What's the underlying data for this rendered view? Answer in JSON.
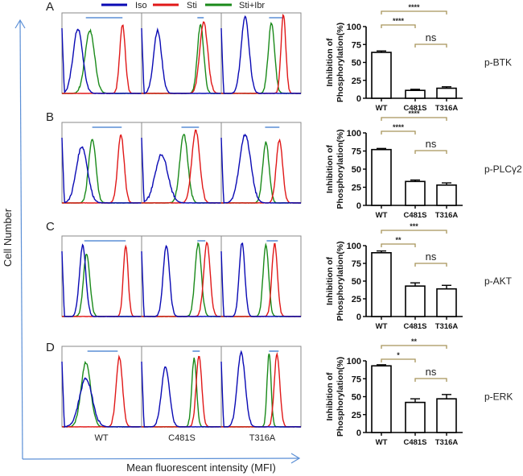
{
  "figure": {
    "y_axis_title": "Cell Number",
    "x_axis_title": "Mean fluorescent intensity (MFI)",
    "legend": [
      {
        "label": "Iso",
        "color": "#0a0ab4"
      },
      {
        "label": "Sti",
        "color": "#e01818"
      },
      {
        "label": "Sti+Ibr",
        "color": "#1a8a1a"
      }
    ],
    "samples": [
      "WT",
      "C481S",
      "T316A"
    ],
    "axis_arrow_color": "#5b8fd6",
    "gate_color": "#5b8fd6",
    "bracket_color": "#a8955a"
  },
  "chart_data": [
    {
      "type": "bar",
      "panel": "A",
      "protein": "p-BTK",
      "title": "",
      "xlabel": "",
      "ylabel": "Inhibition of Phosphorylation(%)",
      "ylim": [
        0,
        100
      ],
      "yticks": [
        0,
        25,
        50,
        75,
        100
      ],
      "categories": [
        "WT",
        "C481S",
        "T316A"
      ],
      "values": [
        64,
        11,
        14
      ],
      "errors": [
        2,
        1.5,
        2
      ],
      "significance": [
        {
          "from": "WT",
          "to": "C481S",
          "label": "****"
        },
        {
          "from": "WT",
          "to": "T316A",
          "label": "****"
        },
        {
          "from": "C481S",
          "to": "T316A",
          "label": "ns"
        }
      ]
    },
    {
      "type": "bar",
      "panel": "B",
      "protein": "p-PLCγ2",
      "title": "",
      "xlabel": "",
      "ylabel": "Inhibition of Phosphorylation(%)",
      "ylim": [
        0,
        100
      ],
      "yticks": [
        0,
        25,
        50,
        75,
        100
      ],
      "categories": [
        "WT",
        "C481S",
        "T316A"
      ],
      "values": [
        77,
        33,
        28
      ],
      "errors": [
        1.5,
        2,
        3
      ],
      "significance": [
        {
          "from": "WT",
          "to": "C481S",
          "label": "****"
        },
        {
          "from": "WT",
          "to": "T316A",
          "label": "****"
        },
        {
          "from": "C481S",
          "to": "T316A",
          "label": "ns"
        }
      ]
    },
    {
      "type": "bar",
      "panel": "C",
      "protein": "p-AKT",
      "title": "",
      "xlabel": "",
      "ylabel": "Inhibition of Phosphorylation(%)",
      "ylim": [
        0,
        100
      ],
      "yticks": [
        0,
        25,
        50,
        75,
        100
      ],
      "categories": [
        "WT",
        "C481S",
        "T316A"
      ],
      "values": [
        90,
        43,
        39
      ],
      "errors": [
        2.5,
        4.5,
        5
      ],
      "significance": [
        {
          "from": "WT",
          "to": "C481S",
          "label": "**"
        },
        {
          "from": "WT",
          "to": "T316A",
          "label": "***"
        },
        {
          "from": "C481S",
          "to": "T316A",
          "label": "ns"
        }
      ]
    },
    {
      "type": "bar",
      "panel": "D",
      "protein": "p-ERK",
      "title": "",
      "xlabel": "",
      "ylabel": "Inhibition of Phosphorylation(%)",
      "ylim": [
        0,
        100
      ],
      "yticks": [
        0,
        25,
        50,
        75,
        100
      ],
      "categories": [
        "WT",
        "C481S",
        "T316A"
      ],
      "values": [
        93,
        42,
        47
      ],
      "errors": [
        1.5,
        5,
        6
      ],
      "significance": [
        {
          "from": "WT",
          "to": "C481S",
          "label": "*"
        },
        {
          "from": "WT",
          "to": "T316A",
          "label": "**"
        },
        {
          "from": "C481S",
          "to": "T316A",
          "label": "ns"
        }
      ]
    }
  ],
  "histograms": [
    {
      "panel": "A",
      "note": "relative peak positions (0-1 of MFI axis) per sample",
      "samples": [
        {
          "sample": "WT",
          "gate": [
            0.3,
            0.76
          ],
          "iso": {
            "mu": 0.2,
            "sd": 0.06,
            "h": 0.8
          },
          "sti": {
            "mu": 0.76,
            "sd": 0.035,
            "h": 0.85
          },
          "ibr": {
            "mu": 0.35,
            "sd": 0.06,
            "h": 0.78
          }
        },
        {
          "sample": "C481S",
          "gate": [
            0.7,
            0.78
          ],
          "iso": {
            "mu": 0.2,
            "sd": 0.05,
            "h": 0.78
          },
          "sti": {
            "mu": 0.78,
            "sd": 0.05,
            "h": 0.88
          },
          "ibr": {
            "mu": 0.74,
            "sd": 0.04,
            "h": 0.85
          }
        },
        {
          "sample": "T316A",
          "gate": [
            0.6,
            0.78
          ],
          "iso": {
            "mu": 0.3,
            "sd": 0.05,
            "h": 0.95
          },
          "sti": {
            "mu": 0.78,
            "sd": 0.03,
            "h": 0.98
          },
          "ibr": {
            "mu": 0.63,
            "sd": 0.04,
            "h": 0.87
          }
        }
      ]
    },
    {
      "panel": "B",
      "samples": [
        {
          "sample": "WT",
          "gate": [
            0.38,
            0.75
          ],
          "iso": {
            "mu": 0.25,
            "sd": 0.07,
            "h": 0.7
          },
          "sti": {
            "mu": 0.74,
            "sd": 0.04,
            "h": 0.85
          },
          "ibr": {
            "mu": 0.38,
            "sd": 0.045,
            "h": 0.8
          }
        },
        {
          "sample": "C481S",
          "gate": [
            0.5,
            0.72
          ],
          "iso": {
            "mu": 0.25,
            "sd": 0.08,
            "h": 0.6
          },
          "sti": {
            "mu": 0.68,
            "sd": 0.05,
            "h": 0.9
          },
          "ibr": {
            "mu": 0.53,
            "sd": 0.05,
            "h": 0.85
          }
        },
        {
          "sample": "T316A",
          "gate": [
            0.55,
            0.73
          ],
          "iso": {
            "mu": 0.3,
            "sd": 0.07,
            "h": 0.85
          },
          "sti": {
            "mu": 0.73,
            "sd": 0.04,
            "h": 0.78
          },
          "ibr": {
            "mu": 0.56,
            "sd": 0.04,
            "h": 0.75
          }
        }
      ]
    },
    {
      "panel": "C",
      "samples": [
        {
          "sample": "WT",
          "gate": [
            0.28,
            0.8
          ],
          "iso": {
            "mu": 0.26,
            "sd": 0.04,
            "h": 0.88
          },
          "sti": {
            "mu": 0.8,
            "sd": 0.03,
            "h": 0.88
          },
          "ibr": {
            "mu": 0.31,
            "sd": 0.04,
            "h": 0.78
          }
        },
        {
          "sample": "C481S",
          "gate": [
            0.7,
            0.8
          ],
          "iso": {
            "mu": 0.31,
            "sd": 0.04,
            "h": 0.88
          },
          "sti": {
            "mu": 0.82,
            "sd": 0.04,
            "h": 0.92
          },
          "ibr": {
            "mu": 0.71,
            "sd": 0.04,
            "h": 0.9
          }
        },
        {
          "sample": "T316A",
          "gate": [
            0.57,
            0.71
          ],
          "iso": {
            "mu": 0.26,
            "sd": 0.035,
            "h": 0.92
          },
          "sti": {
            "mu": 0.67,
            "sd": 0.035,
            "h": 0.9
          },
          "ibr": {
            "mu": 0.56,
            "sd": 0.035,
            "h": 0.88
          }
        }
      ]
    },
    {
      "panel": "D",
      "samples": [
        {
          "sample": "WT",
          "gate": [
            0.32,
            0.7
          ],
          "iso": {
            "mu": 0.3,
            "sd": 0.08,
            "h": 0.6
          },
          "sti": {
            "mu": 0.72,
            "sd": 0.04,
            "h": 0.86
          },
          "ibr": {
            "mu": 0.3,
            "sd": 0.06,
            "h": 0.8
          }
        },
        {
          "sample": "C481S",
          "gate": [
            0.64,
            0.73
          ],
          "iso": {
            "mu": 0.3,
            "sd": 0.05,
            "h": 0.75
          },
          "sti": {
            "mu": 0.72,
            "sd": 0.035,
            "h": 0.88
          },
          "ibr": {
            "mu": 0.66,
            "sd": 0.03,
            "h": 0.85
          }
        },
        {
          "sample": "T316A",
          "gate": [
            0.6,
            0.72
          ],
          "iso": {
            "mu": 0.25,
            "sd": 0.05,
            "h": 0.92
          },
          "sti": {
            "mu": 0.7,
            "sd": 0.035,
            "h": 0.9
          },
          "ibr": {
            "mu": 0.6,
            "sd": 0.025,
            "h": 0.92
          }
        }
      ]
    }
  ]
}
